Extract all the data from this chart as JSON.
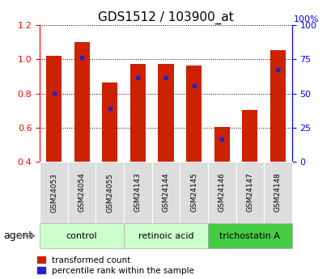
{
  "title": "GDS1512 / 103900_at",
  "samples": [
    "GSM24053",
    "GSM24054",
    "GSM24055",
    "GSM24143",
    "GSM24144",
    "GSM24145",
    "GSM24146",
    "GSM24147",
    "GSM24148"
  ],
  "red_values": [
    1.02,
    1.1,
    0.865,
    0.975,
    0.975,
    0.965,
    0.605,
    0.705,
    1.055
  ],
  "blue_values": [
    0.805,
    1.01,
    0.715,
    0.895,
    0.895,
    0.845,
    0.535,
    null,
    0.94
  ],
  "ylim": [
    0.4,
    1.2
  ],
  "yticks_left": [
    0.4,
    0.6,
    0.8,
    1.0,
    1.2
  ],
  "yticks_right": [
    0,
    25,
    50,
    75,
    100
  ],
  "bar_color": "#cc2200",
  "dot_color": "#2222cc",
  "group_defs": [
    [
      0,
      2,
      "control",
      "#ccffcc"
    ],
    [
      3,
      5,
      "retinoic acid",
      "#ccffcc"
    ],
    [
      6,
      8,
      "trichostatin A",
      "#44cc44"
    ]
  ],
  "legend_red": "transformed count",
  "legend_blue": "percentile rank within the sample",
  "agent_label": "agent",
  "bar_width": 0.55,
  "title_fontsize": 11,
  "tick_fontsize": 8,
  "label_fontsize": 9
}
